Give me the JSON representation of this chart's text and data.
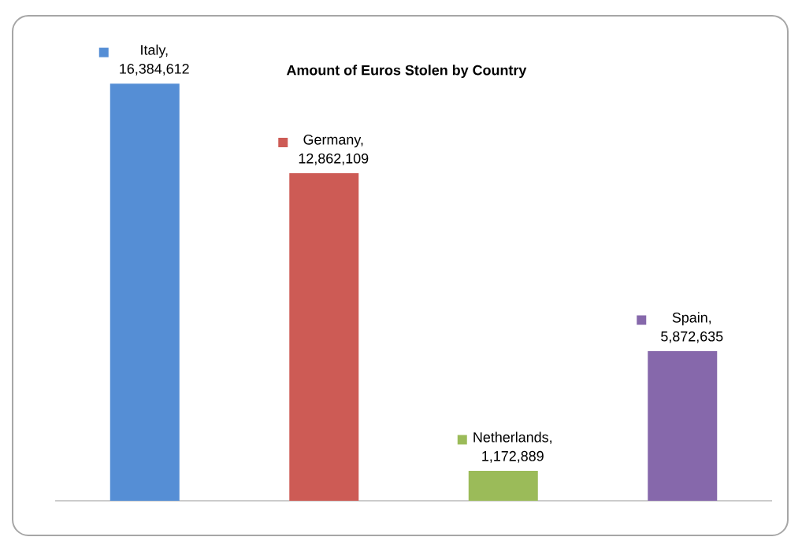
{
  "chart_data": {
    "type": "bar",
    "title": "Amount of Euros Stolen by Country",
    "categories": [
      null,
      null,
      null,
      null
    ],
    "values": [
      16384612,
      12862109,
      1172889,
      5872635
    ],
    "value_labels": [
      "Italy, 16,384,612",
      "Germany, 12,862,109",
      "Netherlands, 1,172,889",
      "Spain, 5,872,635"
    ],
    "colors": [
      "#558ed5",
      "#cd5b55",
      "#9bbb59",
      "#8668ab"
    ],
    "tick_labels": false
  }
}
